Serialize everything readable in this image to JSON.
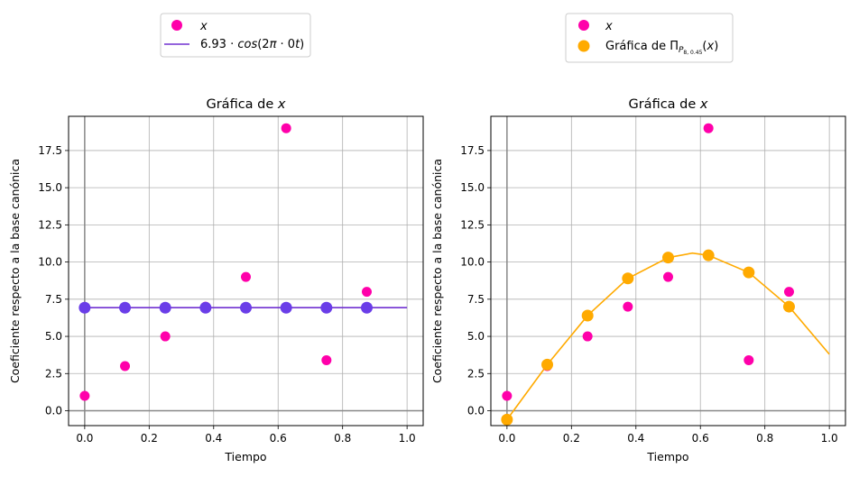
{
  "chart_data": [
    {
      "type": "scatter",
      "title": "Gráfica de x",
      "xlabel": "Tiempo",
      "ylabel": "Coeficiente respecto a la base canónica",
      "xlim": [
        -0.05,
        1.05
      ],
      "ylim": [
        -1.0,
        19.8
      ],
      "xticks": [
        0.0,
        0.2,
        0.4,
        0.6,
        0.8,
        1.0
      ],
      "xtick_labels": [
        "0.0",
        "0.2",
        "0.4",
        "0.6",
        "0.8",
        "1.0"
      ],
      "yticks": [
        0.0,
        2.5,
        5.0,
        7.5,
        10.0,
        12.5,
        15.0,
        17.5
      ],
      "ytick_labels": [
        "0.0",
        "2.5",
        "5.0",
        "7.5",
        "10.0",
        "12.5",
        "15.0",
        "17.5"
      ],
      "grid": true,
      "legend_placement": "above",
      "legend": [
        "x",
        "6.93·cos(2π·0t)"
      ],
      "series": [
        {
          "name": "x",
          "kind": "scatter",
          "color": "#ff00aa",
          "x": [
            0,
            0.125,
            0.25,
            0.375,
            0.5,
            0.625,
            0.75,
            0.875
          ],
          "y": [
            1,
            3,
            5,
            7,
            9,
            19,
            3.4,
            8
          ]
        },
        {
          "name": "6.93·cos(2π·0t)",
          "kind": "line",
          "color": "#7030d0",
          "x": [
            0,
            1
          ],
          "y": [
            6.93,
            6.93
          ]
        },
        {
          "name": "",
          "kind": "scatter",
          "color": "#6a3de8",
          "x": [
            0,
            0.125,
            0.25,
            0.375,
            0.5,
            0.625,
            0.75,
            0.875
          ],
          "y": [
            6.93,
            6.93,
            6.93,
            6.93,
            6.93,
            6.93,
            6.93,
            6.93
          ]
        }
      ]
    },
    {
      "type": "scatter",
      "title": "Gráfica de x",
      "xlabel": "Tiempo",
      "ylabel": "Coeficiente respecto a la base canónica",
      "xlim": [
        -0.05,
        1.05
      ],
      "ylim": [
        -1.0,
        19.8
      ],
      "xticks": [
        0.0,
        0.2,
        0.4,
        0.6,
        0.8,
        1.0
      ],
      "xtick_labels": [
        "0.0",
        "0.2",
        "0.4",
        "0.6",
        "0.8",
        "1.0"
      ],
      "yticks": [
        0.0,
        2.5,
        5.0,
        7.5,
        10.0,
        12.5,
        15.0,
        17.5
      ],
      "ytick_labels": [
        "0.0",
        "2.5",
        "5.0",
        "7.5",
        "10.0",
        "12.5",
        "15.0",
        "17.5"
      ],
      "grid": true,
      "legend_placement": "above",
      "legend": [
        "x",
        "Gráfica de Π_{P_{8,0.45}}(x)"
      ],
      "series": [
        {
          "name": "x",
          "kind": "scatter",
          "color": "#ff00aa",
          "x": [
            0,
            0.125,
            0.25,
            0.375,
            0.5,
            0.625,
            0.75,
            0.875
          ],
          "y": [
            1,
            3,
            5,
            7,
            9,
            19,
            3.4,
            8
          ]
        },
        {
          "name": "Gráfica de Π_{P_{8,0.45}}(x)",
          "kind": "scatter",
          "color": "#ffaa00",
          "x": [
            0,
            0.125,
            0.25,
            0.375,
            0.5,
            0.625,
            0.75,
            0.875
          ],
          "y": [
            -0.6,
            3.1,
            6.4,
            8.9,
            10.3,
            10.45,
            9.3,
            7.0
          ]
        },
        {
          "name": "",
          "kind": "line",
          "color": "#ffaa00",
          "x": [
            0,
            0.125,
            0.25,
            0.375,
            0.5,
            0.575,
            0.625,
            0.75,
            0.875,
            1.0
          ],
          "y": [
            -0.6,
            3.1,
            6.4,
            8.9,
            10.3,
            10.6,
            10.45,
            9.3,
            7.0,
            3.8
          ]
        }
      ]
    }
  ]
}
